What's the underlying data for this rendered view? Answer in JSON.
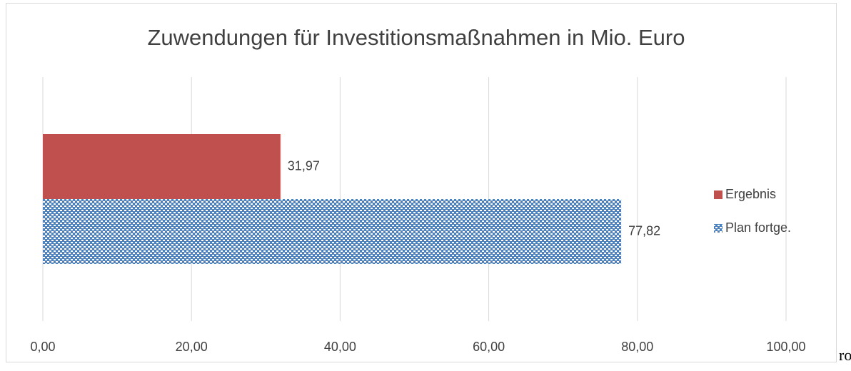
{
  "chart_data": {
    "type": "hbar",
    "title": "Zuwendungen für Investitionsmaßnahmen in Mio. Euro",
    "categories": [
      null
    ],
    "series": [
      {
        "name": "Ergebnis",
        "color": "#c0504d",
        "values": [
          31.97
        ],
        "value_labels": [
          "31,97"
        ]
      },
      {
        "name": "Plan fortge.",
        "color": "#4f81bd",
        "pattern": "checker",
        "values": [
          77.82
        ],
        "value_labels": [
          "77,82"
        ]
      }
    ],
    "xlim": [
      0,
      100
    ],
    "xticks": [
      {
        "value": 0,
        "label": "0,00"
      },
      {
        "value": 20,
        "label": "20,00"
      },
      {
        "value": 40,
        "label": "40,00"
      },
      {
        "value": 60,
        "label": "60,00"
      },
      {
        "value": 80,
        "label": "80,00"
      },
      {
        "value": 100,
        "label": "100,00"
      }
    ],
    "grid": true,
    "legend": "right"
  },
  "page_text": "ro"
}
